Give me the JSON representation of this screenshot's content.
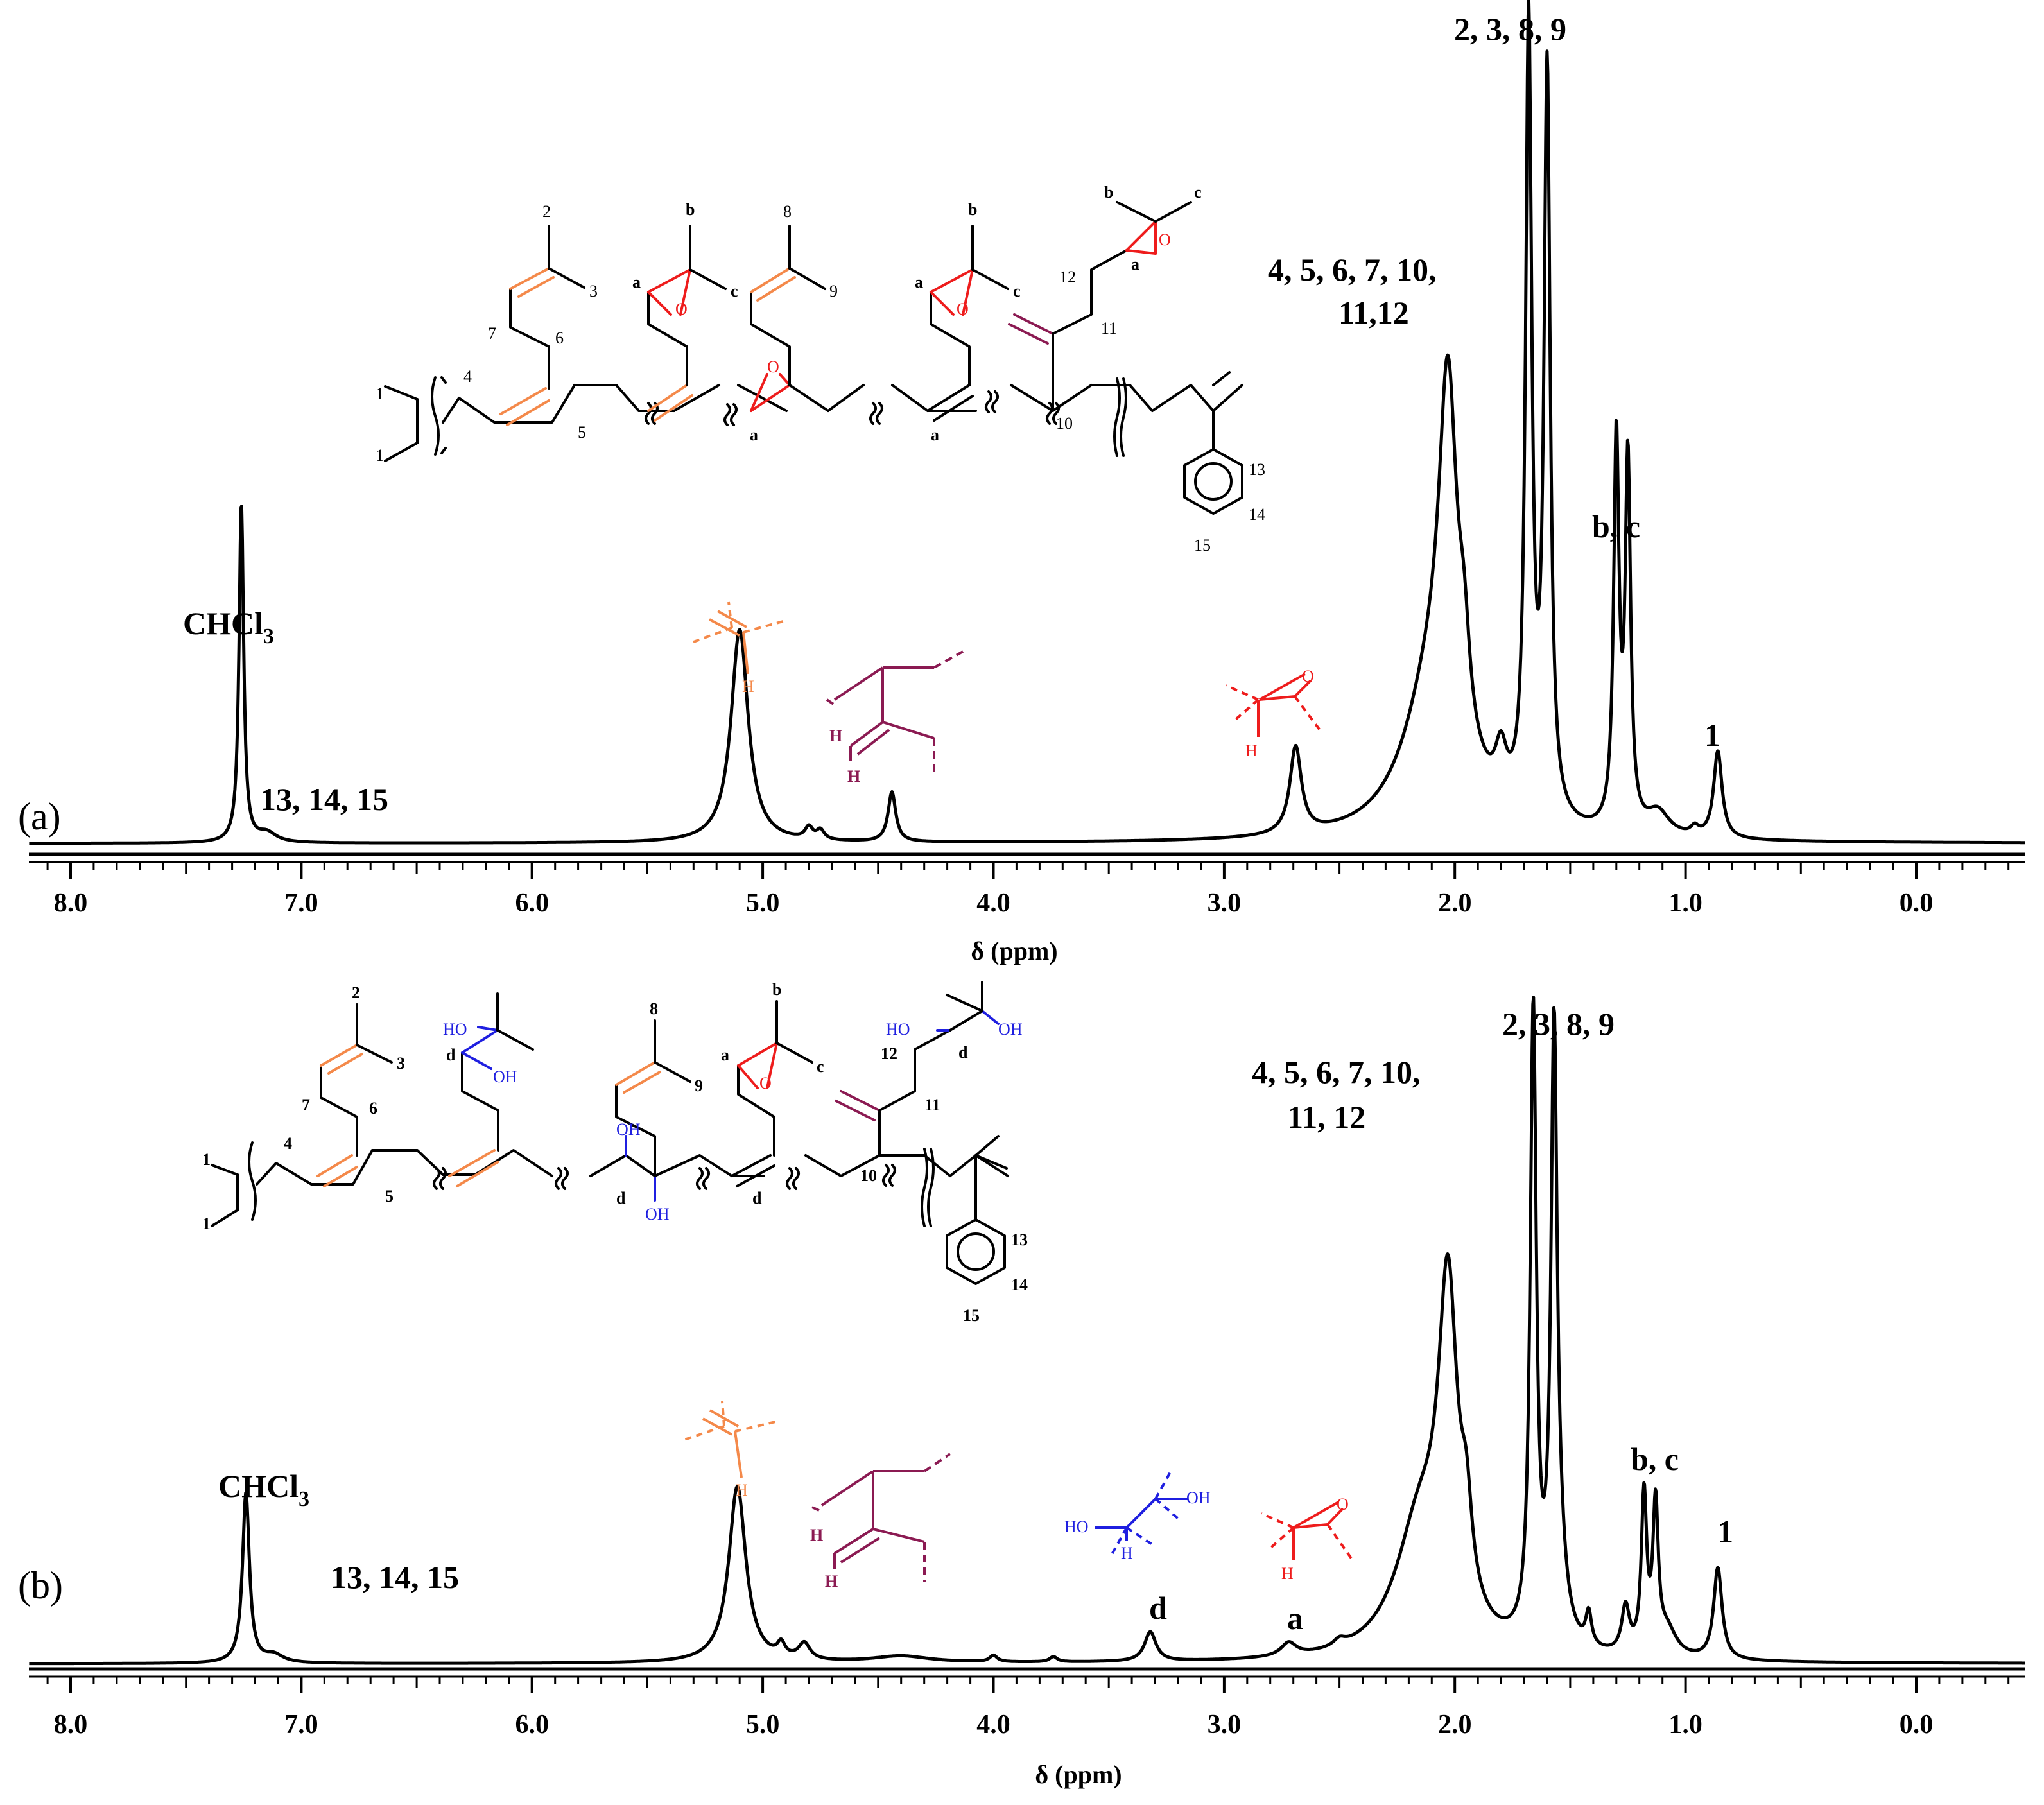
{
  "chart_data": [
    {
      "type": "line",
      "panel_label": "(a)",
      "xlabel": "δ (ppm)",
      "xlim": [
        8.3,
        -0.5
      ],
      "x_reversed": true,
      "xticks": [
        "8.0",
        "7.0",
        "6.0",
        "5.0",
        "4.0",
        "3.0",
        "2.0",
        "1.0",
        "0.0"
      ],
      "series": [
        {
          "peaks": [
            {
              "ppm": 7.26,
              "height": 0.43,
              "width": 0.012
            },
            {
              "ppm": 7.15,
              "height": 0.012,
              "width": 0.05
            },
            {
              "ppm": 5.1,
              "height": 0.27,
              "width": 0.045
            },
            {
              "ppm": 4.8,
              "height": 0.015,
              "width": 0.02
            },
            {
              "ppm": 4.75,
              "height": 0.012,
              "width": 0.02
            },
            {
              "ppm": 4.44,
              "height": 0.063,
              "width": 0.02
            },
            {
              "ppm": 2.69,
              "height": 0.11,
              "width": 0.03
            },
            {
              "ppm": 2.1,
              "height": 0.18,
              "width": 0.15
            },
            {
              "ppm": 2.03,
              "height": 0.45,
              "width": 0.048
            },
            {
              "ppm": 1.96,
              "height": 0.1,
              "width": 0.03
            },
            {
              "ppm": 1.8,
              "height": 0.06,
              "width": 0.03
            },
            {
              "ppm": 1.68,
              "height": 1.0,
              "width": 0.016
            },
            {
              "ppm": 1.6,
              "height": 0.94,
              "width": 0.016
            },
            {
              "ppm": 1.3,
              "height": 0.49,
              "width": 0.014
            },
            {
              "ppm": 1.25,
              "height": 0.46,
              "width": 0.014
            },
            {
              "ppm": 1.12,
              "height": 0.03,
              "width": 0.06
            },
            {
              "ppm": 0.96,
              "height": 0.01,
              "width": 0.02
            },
            {
              "ppm": 0.86,
              "height": 0.11,
              "width": 0.022
            }
          ]
        }
      ],
      "annotations": [
        {
          "text": "CHCl",
          "sub": "3",
          "ppm": 7.26
        },
        {
          "text": "13, 14, 15",
          "ppm": 7.2
        },
        {
          "text": "2, 3, 8, 9",
          "ppm": 1.64
        },
        {
          "text": "4, 5, 6, 7, 10,",
          "ppm": 2.05
        },
        {
          "text": "11,12",
          "ppm": 2.05
        },
        {
          "text": "b, c",
          "ppm": 1.27
        },
        {
          "text": "1",
          "ppm": 0.86
        }
      ]
    },
    {
      "type": "line",
      "panel_label": "(b)",
      "xlabel": "δ (ppm)",
      "xlim": [
        8.3,
        -0.5
      ],
      "x_reversed": true,
      "xticks": [
        "8.0",
        "7.0",
        "6.0",
        "5.0",
        "4.0",
        "3.0",
        "2.0",
        "1.0",
        "0.0"
      ],
      "series": [
        {
          "peaks": [
            {
              "ppm": 7.24,
              "height": 0.26,
              "width": 0.018
            },
            {
              "ppm": 7.12,
              "height": 0.012,
              "width": 0.05
            },
            {
              "ppm": 5.11,
              "height": 0.27,
              "width": 0.045
            },
            {
              "ppm": 4.92,
              "height": 0.02,
              "width": 0.02
            },
            {
              "ppm": 4.82,
              "height": 0.025,
              "width": 0.03
            },
            {
              "ppm": 4.4,
              "height": 0.01,
              "width": 0.15
            },
            {
              "ppm": 4.0,
              "height": 0.01,
              "width": 0.02
            },
            {
              "ppm": 3.74,
              "height": 0.008,
              "width": 0.02
            },
            {
              "ppm": 3.32,
              "height": 0.045,
              "width": 0.03
            },
            {
              "ppm": 2.72,
              "height": 0.02,
              "width": 0.04
            },
            {
              "ppm": 2.5,
              "height": 0.01,
              "width": 0.03
            },
            {
              "ppm": 2.15,
              "height": 0.2,
              "width": 0.13
            },
            {
              "ppm": 2.03,
              "height": 0.5,
              "width": 0.05
            },
            {
              "ppm": 1.95,
              "height": 0.12,
              "width": 0.03
            },
            {
              "ppm": 1.66,
              "height": 0.96,
              "width": 0.016
            },
            {
              "ppm": 1.57,
              "height": 0.88,
              "width": 0.016
            },
            {
              "ppm": 1.55,
              "height": 0.1,
              "width": 0.04
            },
            {
              "ppm": 1.42,
              "height": 0.05,
              "width": 0.015
            },
            {
              "ppm": 1.26,
              "height": 0.07,
              "width": 0.02
            },
            {
              "ppm": 1.18,
              "height": 0.24,
              "width": 0.014
            },
            {
              "ppm": 1.13,
              "height": 0.22,
              "width": 0.014
            },
            {
              "ppm": 1.08,
              "height": 0.04,
              "width": 0.05
            },
            {
              "ppm": 0.86,
              "height": 0.14,
              "width": 0.022
            }
          ]
        }
      ],
      "annotations": [
        {
          "text": "CHCl",
          "sub": "3",
          "ppm": 7.24
        },
        {
          "text": "13, 14, 15",
          "ppm": 7.2
        },
        {
          "text": "2, 3, 8, 9",
          "ppm": 1.62
        },
        {
          "text": "4, 5, 6, 7, 10,",
          "ppm": 2.05
        },
        {
          "text": "11, 12",
          "ppm": 2.05
        },
        {
          "text": "b, c",
          "ppm": 1.16
        },
        {
          "text": "1",
          "ppm": 0.86
        },
        {
          "text": "d",
          "ppm": 3.32
        },
        {
          "text": "a",
          "ppm": 2.72
        }
      ]
    }
  ],
  "structure_labels": {
    "a": {
      "n1a": "1",
      "n1b": "1",
      "n2": "2",
      "n3": "3",
      "n4": "4",
      "n5": "5",
      "n6": "6",
      "n7": "7",
      "n8": "8",
      "n9": "9",
      "n10": "10",
      "n11": "11",
      "n12": "12",
      "n13": "13",
      "n14": "14",
      "n15": "15",
      "e1a": "a",
      "e1b": "b",
      "e1c": "c",
      "e2a": "a",
      "e3a": "a",
      "e3b": "b",
      "e3c": "c",
      "e4a": "a",
      "e5a": "a",
      "e5b": "b",
      "e5c": "c",
      "o1": "O",
      "o2": "O",
      "o3": "O",
      "o4": "O"
    },
    "b": {
      "n1a": "1",
      "n1b": "1",
      "n2": "2",
      "n3": "3",
      "n4": "4",
      "n5": "5",
      "n6": "6",
      "n7": "7",
      "n8": "8",
      "n9": "9",
      "n10": "10",
      "n11": "11",
      "n12": "12",
      "n13": "13",
      "n14": "14",
      "n15": "15",
      "d1": "d",
      "d2": "d",
      "d3": "d",
      "d4": "d",
      "ea": "a",
      "eb": "b",
      "ec": "c",
      "oh1": "HO",
      "oh2": "OH",
      "oh3": "OH",
      "oh4": "OH",
      "oh5": "HO",
      "oh6": "OH",
      "o1": "O"
    }
  },
  "fragment_labels": {
    "h": "H",
    "o": "O",
    "oh": "OH",
    "ho": "HO"
  },
  "colors": {
    "spectrum": "#000000",
    "alkene": "#f4894a",
    "vinylidene": "#8b1a52",
    "epoxide": "#ee1c1c",
    "diol": "#1f1fe0"
  }
}
